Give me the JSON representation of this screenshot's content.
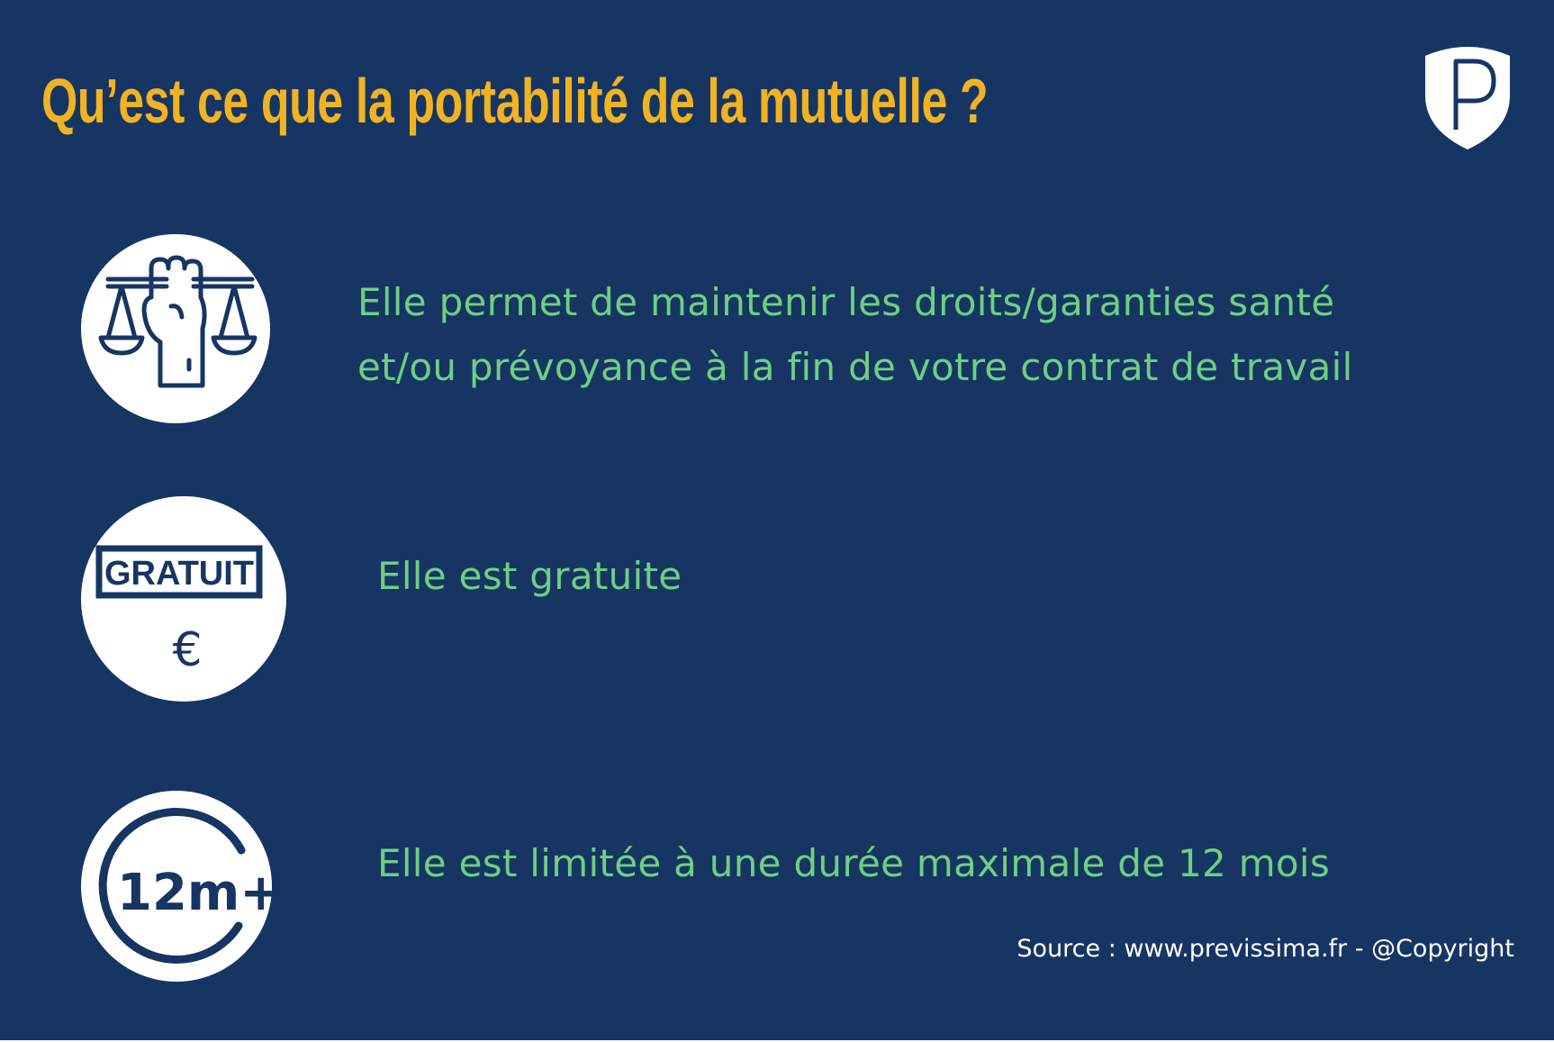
{
  "title": "Qu’est ce que la portabilité de la mutuelle ?",
  "logo": {
    "icon": "shield-p-logo-icon"
  },
  "items": [
    {
      "icon": "justice-fist-scales-icon",
      "lines": [
        "Elle permet de maintenir les droits/garanties santé",
        "et/ou prévoyance à la fin de votre contrat de travail"
      ]
    },
    {
      "icon": "gratuit-euro-icon",
      "icon_label": "GRATUIT",
      "icon_symbol": "€",
      "lines": [
        "Elle est gratuite"
      ]
    },
    {
      "icon": "twelve-months-plus-icon",
      "icon_label": "12m+",
      "lines": [
        "Elle est limitée à une durée maximale de 12 mois"
      ]
    }
  ],
  "source": "Source : www.previssima.fr - @Copyright",
  "colors": {
    "background": "#173562",
    "title": "#f0b323",
    "text": "#6ecf83",
    "icon_fill": "#ffffff",
    "icon_stroke": "#173562",
    "source": "#ffffff"
  }
}
